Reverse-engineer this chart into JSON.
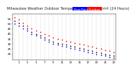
{
  "title_left": "Milwaukee Weather Outdoor Temperature",
  "title_mid": " vs Dew Point",
  "title_right": "(24 Hours)",
  "background_color": "#ffffff",
  "temp_color": "#ff0000",
  "dew_color": "#0000ff",
  "apparent_color": "#000000",
  "hours": [
    0,
    1,
    2,
    3,
    4,
    5,
    6,
    7,
    8,
    9,
    10,
    11,
    12,
    13,
    14,
    15,
    16,
    17,
    18,
    19,
    20,
    21,
    22,
    23
  ],
  "temp_vals": [
    56,
    54,
    51,
    48,
    45,
    43,
    42,
    40,
    38,
    36,
    35,
    34,
    33,
    32,
    31,
    30,
    29,
    28,
    27,
    26,
    25,
    24,
    23,
    22
  ],
  "dew_vals": [
    50,
    48,
    45,
    43,
    40,
    38,
    36,
    34,
    32,
    30,
    29,
    28,
    27,
    26,
    25,
    24,
    23,
    22,
    21,
    20,
    19,
    18,
    17,
    16
  ],
  "apparent_vals": [
    53,
    51,
    48,
    45,
    42,
    40,
    38,
    36,
    34,
    32,
    31,
    30,
    29,
    28,
    27,
    26,
    25,
    24,
    23,
    22,
    21,
    20,
    19,
    18
  ],
  "ylim": [
    14,
    60
  ],
  "yticks": [
    20,
    25,
    30,
    35,
    40,
    45,
    50,
    55
  ],
  "xticks": [
    1,
    3,
    5,
    7,
    9,
    11,
    13,
    15,
    17,
    19,
    21,
    23
  ],
  "ylabel_fontsize": 3.0,
  "xlabel_fontsize": 2.8,
  "legend_blue_label": "Dew Point",
  "legend_red_label": "Outdoor Temp",
  "marker_size": 1.5,
  "grid_color": "#bbbbbb",
  "legend_fontsize": 3.0,
  "title_fontsize": 3.8
}
